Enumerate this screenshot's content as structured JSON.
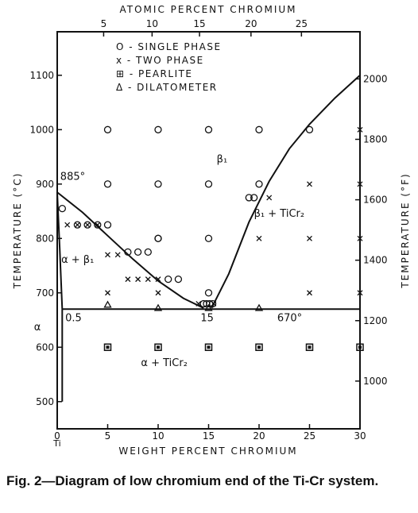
{
  "caption": "Fig. 2—Diagram of low chromium end of the Ti-Cr system.",
  "chart_data": {
    "type": "scatter",
    "title": "",
    "xlabel": "WEIGHT PERCENT CHROMIUM",
    "top_xlabel": "ATOMIC PERCENT CHROMIUM",
    "ylabel": "TEMPERATURE (°C)",
    "right_ylabel": "TEMPERATURE (°F)",
    "xlim": [
      0,
      30
    ],
    "ylim": [
      450,
      1180
    ],
    "x_ticks": [
      0,
      5,
      10,
      15,
      20,
      25,
      30
    ],
    "x_tick_labels": [
      "0",
      "5",
      "10",
      "15",
      "20",
      "25",
      "30"
    ],
    "x0_sublabel": "Ti",
    "y_ticks": [
      500,
      600,
      700,
      800,
      900,
      1000,
      1100
    ],
    "y_tick_labels": [
      "500",
      "600",
      "700",
      "800",
      "900",
      "1000",
      "1100"
    ],
    "top_ticks": [
      5,
      10,
      15,
      20,
      25
    ],
    "top_ticks_wt": [
      4.6,
      9.4,
      14.1,
      19.2,
      24.2
    ],
    "right_ticks_f": [
      1000,
      1200,
      1400,
      1600,
      1800,
      2000
    ],
    "grid": false,
    "legend_position": "top-center",
    "legend": [
      {
        "symbol": "circle",
        "label": "O - SINGLE PHASE"
      },
      {
        "symbol": "x",
        "label": "x - TWO PHASE"
      },
      {
        "symbol": "pearlite",
        "label": "⊞ - PEARLITE"
      },
      {
        "symbol": "triangle",
        "label": "Δ - DILATOMETER"
      }
    ],
    "lines": [
      {
        "name": "beta transus",
        "x": [
          0,
          2.5,
          5,
          7.5,
          10,
          12.5,
          14.5
        ],
        "y": [
          885,
          848,
          805,
          762,
          722,
          690,
          672
        ]
      },
      {
        "name": "beta / beta+TiCr2 solvus",
        "x": [
          15.3,
          17,
          19,
          21,
          23,
          25,
          27.5,
          30
        ],
        "y": [
          672,
          735,
          830,
          905,
          965,
          1010,
          1058,
          1100
        ]
      },
      {
        "name": "eutectoid isotherm",
        "x": [
          0.5,
          30
        ],
        "y": [
          670,
          670
        ]
      },
      {
        "name": "alpha solvus",
        "x": [
          0.5,
          0.5
        ],
        "y": [
          670,
          500
        ]
      },
      {
        "name": "alpha boundary",
        "x": [
          0,
          0.25,
          0.5
        ],
        "y": [
          885,
          780,
          670
        ]
      }
    ],
    "series": [
      {
        "name": "SINGLE PHASE",
        "marker": "circle",
        "x": [
          5,
          10,
          15,
          20,
          25,
          5,
          10,
          15,
          20,
          0.5,
          2,
          3,
          4,
          5,
          7,
          8,
          9,
          10,
          11,
          12,
          10,
          15,
          15,
          19,
          19.5,
          14.5,
          14.8,
          15.1,
          15.4
        ],
        "y": [
          1000,
          1000,
          1000,
          1000,
          1000,
          900,
          900,
          900,
          900,
          855,
          825,
          825,
          825,
          825,
          775,
          775,
          775,
          800,
          725,
          725,
          800,
          800,
          700,
          875,
          875,
          680,
          680,
          680,
          680
        ]
      },
      {
        "name": "TWO PHASE",
        "marker": "x",
        "x": [
          30,
          25,
          30,
          21,
          1,
          2,
          3,
          4,
          5,
          6,
          20,
          25,
          30,
          7,
          8,
          9,
          10,
          5,
          10,
          25,
          30,
          14,
          15.5
        ],
        "y": [
          1000,
          900,
          900,
          875,
          825,
          825,
          825,
          825,
          770,
          770,
          800,
          800,
          800,
          725,
          725,
          725,
          725,
          700,
          700,
          700,
          700,
          680,
          680
        ]
      },
      {
        "name": "PEARLITE",
        "marker": "pearlite",
        "x": [
          5,
          10,
          15,
          20,
          25,
          30
        ],
        "y": [
          600,
          600,
          600,
          600,
          600,
          600
        ]
      },
      {
        "name": "DILATOMETER",
        "marker": "triangle",
        "x": [
          5,
          10,
          15,
          20
        ],
        "y": [
          678,
          672,
          672,
          672
        ]
      }
    ],
    "annotations": [
      {
        "text": "885°",
        "x": 0.3,
        "y": 908
      },
      {
        "text": "β₁",
        "x": 15.8,
        "y": 940
      },
      {
        "text": "β₁ + TiCr₂",
        "x": 19.5,
        "y": 840
      },
      {
        "text": "α + β₁",
        "x": 0.4,
        "y": 755
      },
      {
        "text": "0.5",
        "x": 0.8,
        "y": 648
      },
      {
        "text": "15",
        "x": 14.2,
        "y": 648
      },
      {
        "text": "670°",
        "x": 21.8,
        "y": 648
      },
      {
        "text": "α",
        "x": -2.3,
        "y": 631
      },
      {
        "text": "α + TiCr₂",
        "x": 8.3,
        "y": 565
      }
    ]
  }
}
